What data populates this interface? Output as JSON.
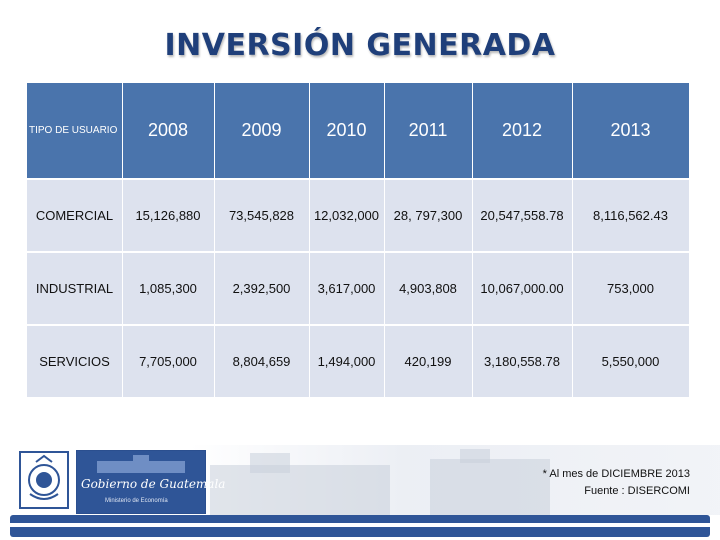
{
  "title": "INVERSIÓN GENERADA",
  "table": {
    "header_label": "TIPO DE USUARIO",
    "years": [
      "2008",
      "2009",
      "2010",
      "2011",
      "2012",
      "2013"
    ],
    "rows": [
      {
        "label": "COMERCIAL",
        "values": [
          "15,126,880",
          "73,545,828",
          "12,032,000",
          "28, 797,300",
          "20,547,558.78",
          "8,116,562.43"
        ]
      },
      {
        "label": "INDUSTRIAL",
        "values": [
          "1,085,300",
          "2,392,500",
          "3,617,000",
          "4,903,808",
          "10,067,000.00",
          "753,000"
        ]
      },
      {
        "label": "SERVICIOS",
        "values": [
          "7,705,000",
          "8,804,659",
          "1,494,000",
          "420,199",
          "3,180,558.78",
          "5,550,000"
        ]
      }
    ]
  },
  "logo": {
    "name": "Gobierno de Guatemala",
    "subtitle": "Ministerio de Economía",
    "icon": "coat-of-arms-icon"
  },
  "note": {
    "line1": "* Al mes de DICIEMBRE 2013",
    "line2": "Fuente : DISERCOMI"
  },
  "colors": {
    "header": "#4a74ac",
    "band": "#dde2ee",
    "title": "#1f3f7a",
    "footer_bar": "#2f5597"
  }
}
